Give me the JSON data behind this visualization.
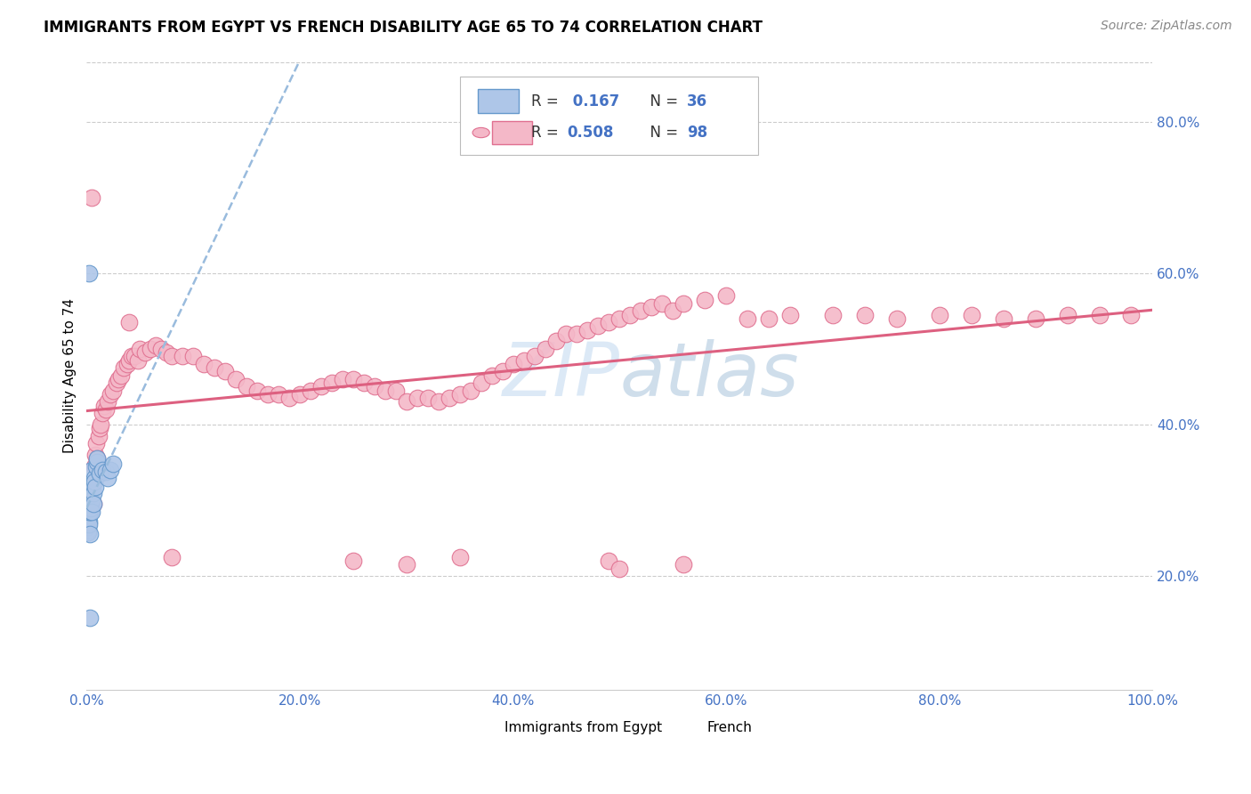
{
  "title": "IMMIGRANTS FROM EGYPT VS FRENCH DISABILITY AGE 65 TO 74 CORRELATION CHART",
  "source": "Source: ZipAtlas.com",
  "ylabel": "Disability Age 65 to 74",
  "xmin": 0.0,
  "xmax": 1.0,
  "ymin": 0.05,
  "ymax": 0.88,
  "xticks": [
    0.0,
    0.2,
    0.4,
    0.6,
    0.8,
    1.0
  ],
  "xtick_labels": [
    "0.0%",
    "20.0%",
    "40.0%",
    "60.0%",
    "80.0%",
    "100.0%"
  ],
  "yticks": [
    0.2,
    0.4,
    0.6,
    0.8
  ],
  "ytick_labels": [
    "20.0%",
    "40.0%",
    "60.0%",
    "80.0%"
  ],
  "grid_color": "#cccccc",
  "watermark": "ZIPatlas",
  "legend_R1": "0.167",
  "legend_N1": "36",
  "legend_R2": "0.508",
  "legend_N2": "98",
  "color_egypt_fill": "#aec6e8",
  "color_egypt_edge": "#6699cc",
  "color_french_fill": "#f4b8c8",
  "color_french_edge": "#e07090",
  "color_egypt_line": "#99bbdd",
  "color_french_line": "#dd6080",
  "color_tick": "#4472c4",
  "egypt_x": [
    0.001,
    0.001,
    0.001,
    0.001,
    0.001,
    0.002,
    0.002,
    0.002,
    0.002,
    0.002,
    0.003,
    0.003,
    0.003,
    0.003,
    0.004,
    0.004,
    0.004,
    0.005,
    0.005,
    0.005,
    0.006,
    0.006,
    0.007,
    0.007,
    0.008,
    0.009,
    0.01,
    0.01,
    0.012,
    0.015,
    0.018,
    0.02,
    0.022,
    0.025,
    0.003,
    0.002
  ],
  "egypt_y": [
    0.275,
    0.265,
    0.26,
    0.258,
    0.27,
    0.28,
    0.272,
    0.268,
    0.285,
    0.29,
    0.255,
    0.305,
    0.285,
    0.3,
    0.315,
    0.32,
    0.29,
    0.34,
    0.3,
    0.285,
    0.31,
    0.295,
    0.33,
    0.325,
    0.318,
    0.345,
    0.35,
    0.355,
    0.335,
    0.34,
    0.338,
    0.33,
    0.34,
    0.348,
    0.145,
    0.6
  ],
  "french_x": [
    0.002,
    0.003,
    0.004,
    0.005,
    0.006,
    0.007,
    0.008,
    0.009,
    0.01,
    0.011,
    0.012,
    0.013,
    0.015,
    0.016,
    0.018,
    0.02,
    0.022,
    0.025,
    0.028,
    0.03,
    0.032,
    0.035,
    0.038,
    0.04,
    0.042,
    0.045,
    0.048,
    0.05,
    0.055,
    0.06,
    0.065,
    0.07,
    0.075,
    0.08,
    0.09,
    0.1,
    0.11,
    0.12,
    0.13,
    0.14,
    0.15,
    0.16,
    0.17,
    0.18,
    0.19,
    0.2,
    0.21,
    0.22,
    0.23,
    0.24,
    0.25,
    0.26,
    0.27,
    0.28,
    0.29,
    0.3,
    0.31,
    0.32,
    0.33,
    0.34,
    0.35,
    0.36,
    0.37,
    0.38,
    0.39,
    0.4,
    0.41,
    0.42,
    0.43,
    0.44,
    0.45,
    0.46,
    0.47,
    0.48,
    0.49,
    0.5,
    0.51,
    0.52,
    0.53,
    0.54,
    0.55,
    0.56,
    0.58,
    0.6,
    0.62,
    0.64,
    0.66,
    0.7,
    0.73,
    0.76,
    0.8,
    0.83,
    0.86,
    0.89,
    0.92,
    0.95,
    0.98,
    0.49
  ],
  "french_y": [
    0.285,
    0.31,
    0.3,
    0.32,
    0.295,
    0.345,
    0.36,
    0.375,
    0.355,
    0.385,
    0.395,
    0.4,
    0.415,
    0.425,
    0.42,
    0.43,
    0.44,
    0.445,
    0.455,
    0.46,
    0.465,
    0.475,
    0.48,
    0.485,
    0.49,
    0.49,
    0.485,
    0.5,
    0.495,
    0.5,
    0.505,
    0.5,
    0.495,
    0.49,
    0.49,
    0.49,
    0.48,
    0.475,
    0.47,
    0.46,
    0.45,
    0.445,
    0.44,
    0.44,
    0.435,
    0.44,
    0.445,
    0.45,
    0.455,
    0.46,
    0.46,
    0.455,
    0.45,
    0.445,
    0.445,
    0.43,
    0.435,
    0.435,
    0.43,
    0.435,
    0.44,
    0.445,
    0.455,
    0.465,
    0.47,
    0.48,
    0.485,
    0.49,
    0.5,
    0.51,
    0.52,
    0.52,
    0.525,
    0.53,
    0.535,
    0.54,
    0.545,
    0.55,
    0.555,
    0.56,
    0.55,
    0.56,
    0.565,
    0.57,
    0.54,
    0.54,
    0.545,
    0.545,
    0.545,
    0.54,
    0.545,
    0.545,
    0.54,
    0.54,
    0.545,
    0.545,
    0.545,
    0.22
  ],
  "french_outliers_x": [
    0.005,
    0.04,
    0.5,
    0.3,
    0.56,
    0.08,
    0.25,
    0.35
  ],
  "french_outliers_y": [
    0.7,
    0.535,
    0.21,
    0.215,
    0.215,
    0.225,
    0.22,
    0.225
  ]
}
